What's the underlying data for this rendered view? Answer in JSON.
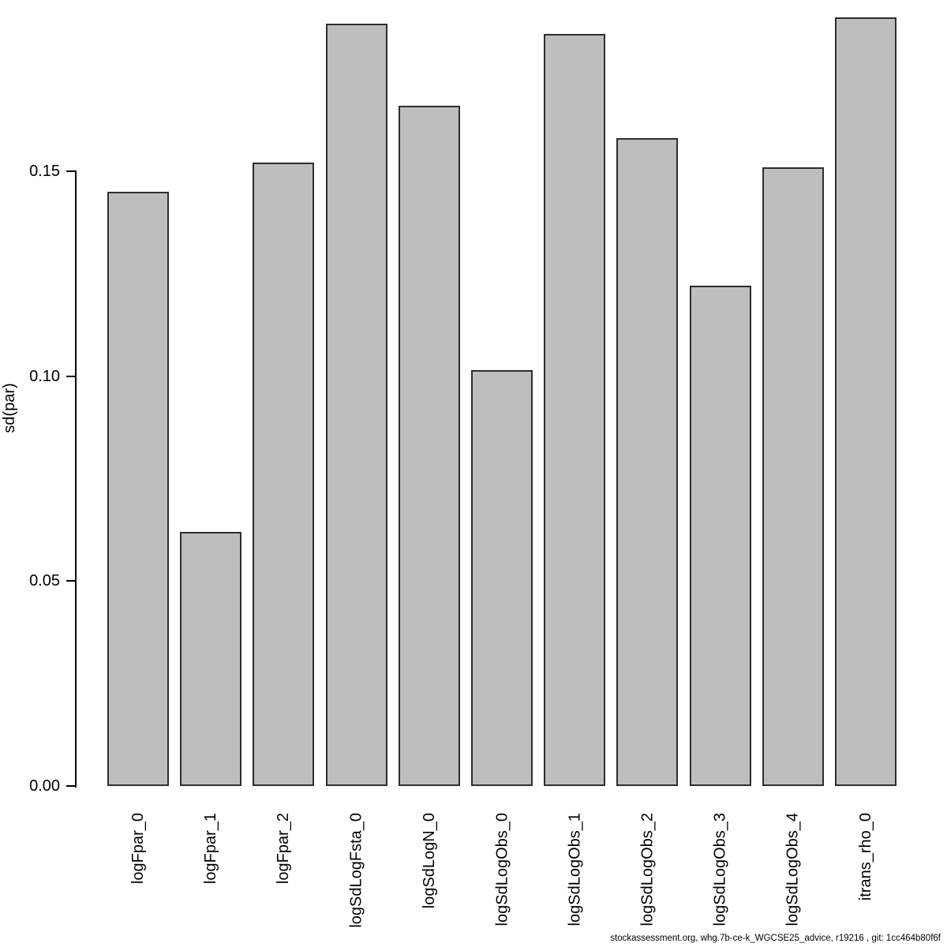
{
  "chart_data": {
    "type": "bar",
    "title": "",
    "xlabel": "",
    "ylabel": "sd(par)",
    "categories": [
      "logFpar_0",
      "logFpar_1",
      "logFpar_2",
      "logSdLogFsta_0",
      "logSdLogN_0",
      "logSdLogObs_0",
      "logSdLogObs_1",
      "logSdLogObs_2",
      "logSdLogObs_3",
      "logSdLogObs_4",
      "itrans_rho_0"
    ],
    "values": [
      0.145,
      0.062,
      0.152,
      0.186,
      0.166,
      0.1015,
      0.1835,
      0.158,
      0.122,
      0.151,
      0.1875
    ],
    "ylim": [
      0,
      0.19
    ],
    "yticks": [
      0,
      0.05,
      0.1,
      0.15
    ],
    "ytick_labels": [
      "0.00",
      "0.05",
      "0.10",
      "0.15"
    ],
    "grid": "off",
    "legend": "none",
    "bar_fill_color": "#bebebe",
    "bar_border_color": "#2e2e2e",
    "x_label_rotation_deg": 90,
    "footer": "stockassessment.org, whg.7b-ce-k_WGCSE25_advice, r19216 , git: 1cc464b80f6f"
  }
}
